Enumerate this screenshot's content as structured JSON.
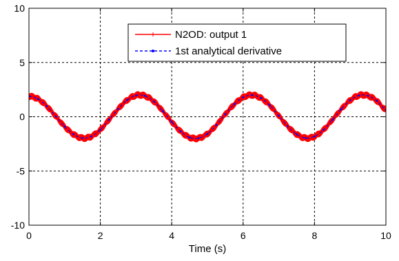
{
  "chart_data": {
    "type": "line",
    "title": "",
    "xlabel": "Time (s)",
    "ylabel": "",
    "xlim": [
      0,
      10
    ],
    "ylim": [
      -10,
      10
    ],
    "grid": true,
    "legend_position": "top-right",
    "x_ticks": [
      0,
      2,
      4,
      6,
      8,
      10
    ],
    "y_ticks": [
      -10,
      -5,
      0,
      5,
      10
    ],
    "x_tick_labels": [
      "0",
      "2",
      "4",
      "6",
      "8",
      "10"
    ],
    "y_tick_labels": [
      "-10",
      "-5",
      "0",
      "5",
      "10"
    ],
    "x": [
      0,
      0.25,
      0.5,
      0.75,
      1.0,
      1.25,
      1.5,
      1.75,
      2.0,
      2.25,
      2.5,
      2.75,
      3.0,
      3.25,
      3.5,
      3.75,
      4.0,
      4.25,
      4.5,
      4.75,
      5.0,
      5.25,
      5.5,
      5.75,
      6.0,
      6.25,
      6.5,
      6.75,
      7.0,
      7.25,
      7.5,
      7.75,
      8.0,
      8.25,
      8.5,
      8.75,
      9.0,
      9.25,
      9.5,
      9.75,
      10.0
    ],
    "series": [
      {
        "name": "N2OD: output 1",
        "color": "#ff0000",
        "style": "solid",
        "marker": "plus",
        "noise_amplitude": 0.35,
        "values": [
          1.89,
          1.65,
          0.97,
          0.04,
          -0.91,
          -1.63,
          -1.97,
          -1.81,
          -1.2,
          -0.25,
          0.72,
          1.53,
          1.97,
          1.92,
          1.41,
          0.52,
          -0.48,
          -1.36,
          -1.91,
          -1.98,
          -1.58,
          -0.78,
          0.23,
          1.14,
          1.79,
          2.0,
          1.72,
          1.04,
          0.08,
          -0.89,
          -1.62,
          -1.97,
          -1.82,
          -1.22,
          -0.29,
          0.7,
          1.52,
          1.97,
          1.93,
          1.45,
          0.62
        ]
      },
      {
        "name": "1st analytical derivative",
        "color": "#0000ff",
        "style": "dashed",
        "marker": "dot",
        "noise_amplitude": 0,
        "values": [
          1.89,
          1.65,
          0.97,
          0.04,
          -0.91,
          -1.63,
          -1.97,
          -1.81,
          -1.2,
          -0.25,
          0.72,
          1.53,
          1.97,
          1.92,
          1.41,
          0.52,
          -0.48,
          -1.36,
          -1.91,
          -1.98,
          -1.58,
          -0.78,
          0.23,
          1.14,
          1.79,
          2.0,
          1.72,
          1.04,
          0.08,
          -0.89,
          -1.62,
          -1.97,
          -1.82,
          -1.22,
          -0.29,
          0.7,
          1.52,
          1.97,
          1.93,
          1.45,
          0.62
        ]
      }
    ]
  }
}
